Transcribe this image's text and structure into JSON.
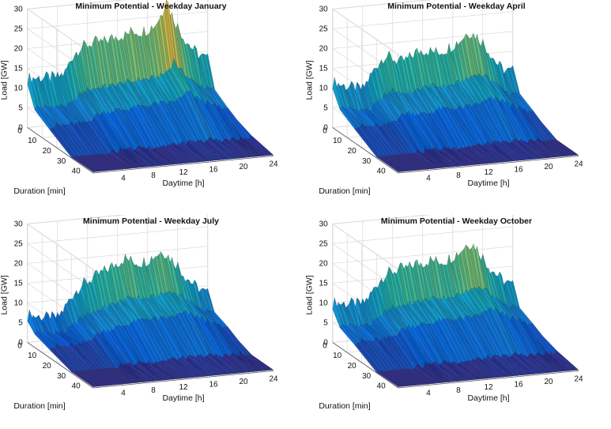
{
  "chart_data": [
    {
      "type": "surface",
      "title": "Minimum Potential - Weekday January",
      "xlabel": "Daytime [h]",
      "ylabel": "Duration [min]",
      "zlabel": "Load [GW]",
      "x_ticks": [
        "4",
        "8",
        "12",
        "16",
        "20",
        "24"
      ],
      "y_ticks": [
        "0",
        "10",
        "20",
        "30",
        "40"
      ],
      "z_ticks": [
        "0",
        "5",
        "10",
        "15",
        "20",
        "25",
        "30"
      ],
      "xlim": [
        0,
        24
      ],
      "ylim": [
        0,
        45
      ],
      "zlim": [
        0,
        30
      ],
      "colormap": "parula",
      "duration_rows": [
        0,
        5,
        15,
        30,
        45
      ],
      "profile_max_load": [
        [
          0,
          12.5
        ],
        [
          2,
          12.3
        ],
        [
          4,
          12
        ],
        [
          5,
          13
        ],
        [
          6,
          17
        ],
        [
          7,
          19
        ],
        [
          8,
          19.5
        ],
        [
          9,
          20
        ],
        [
          10,
          19.8
        ],
        [
          11,
          20.5
        ],
        [
          12,
          21
        ],
        [
          13,
          21
        ],
        [
          14,
          22
        ],
        [
          15,
          21.5
        ],
        [
          16,
          22
        ],
        [
          17,
          23
        ],
        [
          18,
          26
        ],
        [
          18.5,
          30
        ],
        [
          19,
          26
        ],
        [
          20,
          22
        ],
        [
          21,
          18.5
        ],
        [
          22,
          16
        ],
        [
          23,
          14
        ],
        [
          24,
          13
        ]
      ],
      "row_scale": [
        1.0,
        0.5,
        0.33,
        0.04,
        0.0
      ]
    },
    {
      "type": "surface",
      "title": "Minimum Potential - Weekday April",
      "xlabel": "Daytime [h]",
      "ylabel": "Duration [min]",
      "zlabel": "Load [GW]",
      "x_ticks": [
        "4",
        "8",
        "12",
        "16",
        "20",
        "24"
      ],
      "y_ticks": [
        "0",
        "10",
        "20",
        "30",
        "40"
      ],
      "z_ticks": [
        "0",
        "5",
        "10",
        "15",
        "20",
        "25",
        "30"
      ],
      "xlim": [
        0,
        24
      ],
      "ylim": [
        0,
        45
      ],
      "zlim": [
        0,
        30
      ],
      "colormap": "parula",
      "duration_rows": [
        0,
        5,
        15,
        30,
        45
      ],
      "profile_max_load": [
        [
          0,
          11.5
        ],
        [
          2,
          10
        ],
        [
          4,
          9
        ],
        [
          5,
          12
        ],
        [
          6,
          15
        ],
        [
          7,
          17
        ],
        [
          8,
          16
        ],
        [
          9,
          15
        ],
        [
          10,
          15.5
        ],
        [
          11,
          17
        ],
        [
          12,
          17.5
        ],
        [
          13,
          17
        ],
        [
          14,
          16.5
        ],
        [
          15,
          17
        ],
        [
          16,
          18
        ],
        [
          17,
          19
        ],
        [
          18,
          21
        ],
        [
          19,
          20
        ],
        [
          20,
          18
        ],
        [
          21,
          15
        ],
        [
          22,
          12
        ],
        [
          23,
          10
        ],
        [
          24,
          10
        ]
      ],
      "row_scale": [
        1.0,
        0.55,
        0.37,
        0.04,
        0.0
      ]
    },
    {
      "type": "surface",
      "title": "Minimum Potential - Weekday July",
      "xlabel": "Daytime [h]",
      "ylabel": "Duration [min]",
      "zlabel": "Load [GW]",
      "x_ticks": [
        "4",
        "8",
        "12",
        "16",
        "20",
        "24"
      ],
      "y_ticks": [
        "0",
        "10",
        "20",
        "30",
        "40"
      ],
      "z_ticks": [
        "0",
        "5",
        "10",
        "15",
        "20",
        "25",
        "30"
      ],
      "xlim": [
        0,
        24
      ],
      "ylim": [
        0,
        45
      ],
      "zlim": [
        0,
        30
      ],
      "colormap": "parula",
      "duration_rows": [
        0,
        5,
        15,
        30,
        45
      ],
      "profile_max_load": [
        [
          0,
          7
        ],
        [
          2,
          6
        ],
        [
          4,
          5.5
        ],
        [
          5,
          8
        ],
        [
          6,
          11
        ],
        [
          7,
          13
        ],
        [
          8,
          14
        ],
        [
          9,
          15
        ],
        [
          10,
          16
        ],
        [
          11,
          17
        ],
        [
          12,
          18
        ],
        [
          13,
          19
        ],
        [
          14,
          18
        ],
        [
          15,
          17.5
        ],
        [
          16,
          18
        ],
        [
          17,
          19
        ],
        [
          18,
          20
        ],
        [
          19,
          18
        ],
        [
          20,
          16
        ],
        [
          21,
          13
        ],
        [
          22,
          11
        ],
        [
          23,
          9
        ],
        [
          24,
          8
        ]
      ],
      "row_scale": [
        1.0,
        0.55,
        0.4,
        0.05,
        0.0
      ]
    },
    {
      "type": "surface",
      "title": "Minimum Potential - Weekday October",
      "xlabel": "Daytime [h]",
      "ylabel": "Duration [min]",
      "zlabel": "Load [GW]",
      "x_ticks": [
        "4",
        "8",
        "12",
        "16",
        "20",
        "24"
      ],
      "y_ticks": [
        "0",
        "10",
        "20",
        "30",
        "40"
      ],
      "z_ticks": [
        "0",
        "5",
        "10",
        "15",
        "20",
        "25",
        "30"
      ],
      "xlim": [
        0,
        24
      ],
      "ylim": [
        0,
        45
      ],
      "zlim": [
        0,
        30
      ],
      "colormap": "parula",
      "duration_rows": [
        0,
        5,
        15,
        30,
        45
      ],
      "profile_max_load": [
        [
          0,
          10
        ],
        [
          2,
          9.5
        ],
        [
          4,
          9
        ],
        [
          5,
          11
        ],
        [
          6,
          14
        ],
        [
          7,
          16
        ],
        [
          8,
          16.5
        ],
        [
          9,
          17
        ],
        [
          10,
          17
        ],
        [
          11,
          18
        ],
        [
          12,
          18
        ],
        [
          13,
          18.5
        ],
        [
          14,
          18
        ],
        [
          15,
          18
        ],
        [
          16,
          19
        ],
        [
          17,
          20
        ],
        [
          18,
          22
        ],
        [
          19,
          21
        ],
        [
          20,
          18
        ],
        [
          21,
          15
        ],
        [
          22,
          13
        ],
        [
          23,
          11
        ],
        [
          24,
          10
        ]
      ],
      "row_scale": [
        1.0,
        0.55,
        0.4,
        0.05,
        0.0
      ]
    }
  ]
}
